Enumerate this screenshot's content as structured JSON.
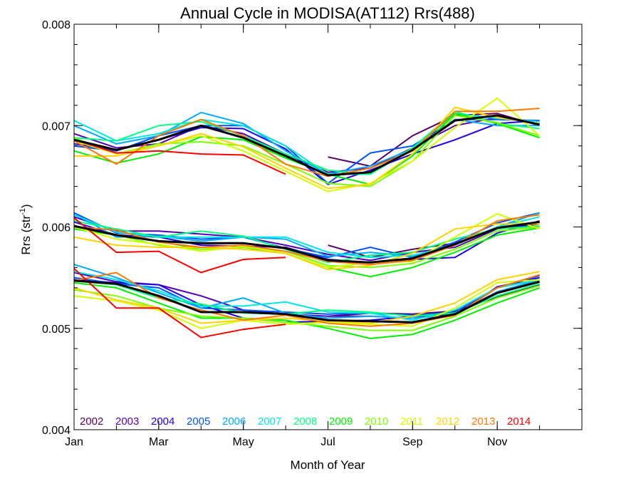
{
  "chart_data": {
    "type": "line",
    "title": "Annual Cycle in MODISA(AT112) Rrs(488)",
    "xlabel": "Month of Year",
    "ylabel_main": "Rrs (str",
    "ylabel_sup": "-1",
    "ylabel_end": ")",
    "xlim": [
      0.5,
      12.5
    ],
    "ylim": [
      0.004,
      0.008
    ],
    "xticks": [
      {
        "value": 0.5,
        "label": "Jan"
      },
      {
        "value": 2.5,
        "label": "Mar"
      },
      {
        "value": 4.5,
        "label": "May"
      },
      {
        "value": 6.5,
        "label": "Jul"
      },
      {
        "value": 8.5,
        "label": "Sep"
      },
      {
        "value": 10.5,
        "label": "Nov"
      }
    ],
    "yticks": [
      {
        "value": 0.004,
        "label": "0.004"
      },
      {
        "value": 0.005,
        "label": "0.005"
      },
      {
        "value": 0.006,
        "label": "0.006"
      },
      {
        "value": 0.007,
        "label": "0.007"
      },
      {
        "value": 0.008,
        "label": "0.008"
      }
    ],
    "x": [
      0.5,
      1.5,
      2.5,
      3.5,
      4.5,
      5.5,
      6.5,
      7.5,
      8.5,
      9.5,
      10.5,
      11.5
    ],
    "legend_placement": "bottom-left",
    "mean_color": "#000000",
    "series": [
      {
        "name": "2002",
        "color": "#550066",
        "groups": [
          [
            null,
            null,
            null,
            null,
            null,
            null,
            0.00669,
            0.0066,
            0.0069,
            0.0071,
            0.00712,
            0.007
          ],
          [
            null,
            null,
            null,
            null,
            null,
            null,
            0.00582,
            0.0057,
            0.00578,
            0.00584,
            0.00598,
            0.00603
          ],
          [
            null,
            null,
            null,
            null,
            null,
            null,
            0.00512,
            0.00515,
            0.00514,
            0.00517,
            0.00531,
            0.00543
          ]
        ]
      },
      {
        "name": "2003",
        "color": "#5500b4",
        "groups": [
          [
            0.00692,
            0.00678,
            0.00682,
            0.007,
            0.00692,
            0.00672,
            0.00654,
            0.00658,
            0.00678,
            0.007,
            0.00708,
            0.00702
          ],
          [
            0.0061,
            0.00596,
            0.00596,
            0.00593,
            0.0059,
            0.00582,
            0.00573,
            0.00567,
            0.00575,
            0.0058,
            0.00598,
            0.00605
          ],
          [
            0.00555,
            0.00546,
            0.00543,
            0.00532,
            0.00518,
            0.00514,
            0.00512,
            0.00512,
            0.0051,
            0.00514,
            0.00536,
            0.00546
          ]
        ]
      },
      {
        "name": "2004",
        "color": "#1e00e6",
        "groups": [
          [
            0.00682,
            0.00676,
            0.00686,
            0.00698,
            0.00697,
            0.00677,
            0.00642,
            0.00656,
            0.00672,
            0.00686,
            0.00702,
            0.00705
          ],
          [
            0.00605,
            0.00592,
            0.0059,
            0.00582,
            0.00581,
            0.0058,
            0.00568,
            0.00565,
            0.00568,
            0.0057,
            0.00594,
            0.00606
          ],
          [
            0.00548,
            0.00545,
            0.00543,
            0.00523,
            0.0051,
            0.00506,
            0.00507,
            0.00508,
            0.00512,
            0.00513,
            0.00541,
            0.0055
          ]
        ]
      },
      {
        "name": "2005",
        "color": "#0050ff",
        "groups": [
          [
            0.0068,
            0.00675,
            0.0069,
            0.007,
            0.007,
            0.0068,
            0.00643,
            0.00673,
            0.0068,
            0.00706,
            0.00706,
            0.00705
          ],
          [
            0.00614,
            0.00594,
            0.00592,
            0.00588,
            0.0059,
            0.00579,
            0.0057,
            0.0058,
            0.0057,
            0.00585,
            0.00604,
            0.00614
          ],
          [
            0.0055,
            0.00544,
            0.0054,
            0.0052,
            0.00518,
            0.00516,
            0.00514,
            0.00515,
            0.00513,
            0.00516,
            0.0054,
            0.00552
          ]
        ]
      },
      {
        "name": "2006",
        "color": "#00aaff",
        "groups": [
          [
            0.007,
            0.00682,
            0.0069,
            0.00713,
            0.00702,
            0.00675,
            0.00652,
            0.0066,
            0.00677,
            0.00706,
            0.007,
            0.007
          ],
          [
            0.00613,
            0.0059,
            0.00591,
            0.00586,
            0.0059,
            0.00588,
            0.00571,
            0.00575,
            0.00571,
            0.00583,
            0.006,
            0.00614
          ],
          [
            0.00563,
            0.0055,
            0.00535,
            0.0052,
            0.0053,
            0.00515,
            0.0051,
            0.00512,
            0.0051,
            0.00513,
            0.00536,
            0.00548
          ]
        ]
      },
      {
        "name": "2007",
        "color": "#00e6e6",
        "groups": [
          [
            0.00705,
            0.00685,
            0.00692,
            0.00706,
            0.007,
            0.0068,
            0.00652,
            0.00652,
            0.00677,
            0.00712,
            0.00707,
            0.00704
          ],
          [
            0.00612,
            0.00595,
            0.0059,
            0.0059,
            0.0059,
            0.0059,
            0.00575,
            0.0057,
            0.00572,
            0.00582,
            0.006,
            0.0061
          ],
          [
            0.00556,
            0.00548,
            0.00537,
            0.00522,
            0.00522,
            0.00526,
            0.00516,
            0.00515,
            0.00508,
            0.00518,
            0.0054,
            0.00548
          ]
        ]
      },
      {
        "name": "2008",
        "color": "#00ff82",
        "groups": [
          [
            0.00688,
            0.00685,
            0.007,
            0.00704,
            0.0069,
            0.00672,
            0.00656,
            0.00652,
            0.00678,
            0.00714,
            0.00702,
            0.00697
          ],
          [
            0.00606,
            0.00598,
            0.0059,
            0.00596,
            0.00591,
            0.00578,
            0.00565,
            0.00572,
            0.00575,
            0.00588,
            0.00598,
            0.00601
          ],
          [
            0.00547,
            0.00543,
            0.0053,
            0.00524,
            0.00515,
            0.00514,
            0.00518,
            0.00516,
            0.00512,
            0.00515,
            0.00532,
            0.00544
          ]
        ]
      },
      {
        "name": "2009",
        "color": "#00f000",
        "groups": [
          [
            0.00675,
            0.00663,
            0.00672,
            0.00689,
            0.00686,
            0.00668,
            0.00652,
            0.00642,
            0.0067,
            0.00712,
            0.00702,
            0.00688
          ],
          [
            0.00598,
            0.00592,
            0.00586,
            0.00578,
            0.0058,
            0.00574,
            0.0056,
            0.00551,
            0.0056,
            0.00575,
            0.00592,
            0.00599
          ],
          [
            0.00545,
            0.0054,
            0.00525,
            0.0051,
            0.0051,
            0.00508,
            0.005,
            0.0049,
            0.00494,
            0.00508,
            0.00525,
            0.0054
          ]
        ]
      },
      {
        "name": "2010",
        "color": "#7cff00",
        "groups": [
          [
            0.00688,
            0.00672,
            0.00682,
            0.00684,
            0.0068,
            0.00662,
            0.00643,
            0.0064,
            0.00665,
            0.0071,
            0.00703,
            0.0069
          ],
          [
            0.006,
            0.00592,
            0.00582,
            0.00578,
            0.0058,
            0.00576,
            0.00562,
            0.0056,
            0.00564,
            0.00578,
            0.00596,
            0.006
          ],
          [
            0.00538,
            0.00532,
            0.0052,
            0.00512,
            0.0051,
            0.00506,
            0.00502,
            0.00498,
            0.00498,
            0.00512,
            0.0053,
            0.00542
          ]
        ]
      },
      {
        "name": "2011",
        "color": "#d2ff00",
        "groups": [
          [
            0.00685,
            0.00672,
            0.0068,
            0.0069,
            0.00675,
            0.00655,
            0.00635,
            0.00643,
            0.00665,
            0.00698,
            0.00727,
            0.0069
          ],
          [
            0.006,
            0.00588,
            0.00583,
            0.00576,
            0.00581,
            0.00574,
            0.0056,
            0.00565,
            0.00566,
            0.0059,
            0.00613,
            0.00598
          ],
          [
            0.00532,
            0.00527,
            0.00518,
            0.005,
            0.00508,
            0.00504,
            0.00506,
            0.00504,
            0.00502,
            0.0052,
            0.00545,
            0.00548
          ]
        ]
      },
      {
        "name": "2012",
        "color": "#ffd200",
        "groups": [
          [
            0.0067,
            0.0067,
            0.0068,
            0.00692,
            0.00679,
            0.00658,
            0.00638,
            0.00642,
            0.00672,
            0.00718,
            0.00708,
            0.00702
          ],
          [
            0.0059,
            0.00582,
            0.0058,
            0.0058,
            0.00578,
            0.00574,
            0.00558,
            0.00562,
            0.00574,
            0.00598,
            0.00603,
            0.00603
          ],
          [
            0.0054,
            0.00528,
            0.0052,
            0.00505,
            0.00508,
            0.0051,
            0.00507,
            0.00505,
            0.00512,
            0.00525,
            0.00548,
            0.00556
          ]
        ]
      },
      {
        "name": "2013",
        "color": "#ff7800",
        "groups": [
          [
            0.00685,
            0.00662,
            0.0069,
            0.00706,
            0.0069,
            0.00662,
            0.0065,
            0.00658,
            0.00675,
            0.00714,
            0.00714,
            0.00717
          ],
          [
            0.006,
            0.00597,
            0.00585,
            0.0058,
            0.00582,
            0.00576,
            0.00566,
            0.00563,
            0.00567,
            0.00582,
            0.00606,
            0.00612
          ],
          [
            0.00547,
            0.00555,
            0.0053,
            0.00518,
            0.00508,
            0.00513,
            0.00505,
            0.00502,
            0.00505,
            0.00513,
            0.0054,
            0.00553
          ]
        ]
      },
      {
        "name": "2014",
        "color": "#ff0000",
        "groups": [
          [
            0.00686,
            0.00673,
            0.00675,
            0.00672,
            0.00671,
            0.00652,
            null,
            null,
            null,
            null,
            null,
            null
          ],
          [
            0.00609,
            0.00575,
            0.00576,
            0.00555,
            0.00568,
            0.0057,
            null,
            null,
            null,
            null,
            null,
            null
          ],
          [
            0.00559,
            0.0052,
            0.0052,
            0.00491,
            0.00499,
            0.00504,
            null,
            null,
            null,
            null,
            null,
            null
          ]
        ]
      }
    ],
    "mean": [
      [
        0.00686,
        0.00676,
        0.00686,
        0.007,
        0.00688,
        0.0067,
        0.00651,
        0.00654,
        0.00676,
        0.00705,
        0.0071,
        0.00701
      ],
      [
        0.00601,
        0.00592,
        0.00586,
        0.00584,
        0.00584,
        0.00579,
        0.00567,
        0.00565,
        0.00569,
        0.00583,
        0.00599,
        0.00605
      ],
      [
        0.00547,
        0.00544,
        0.00532,
        0.00516,
        0.00516,
        0.00514,
        0.00508,
        0.00507,
        0.00506,
        0.00514,
        0.00535,
        0.00546
      ]
    ]
  }
}
